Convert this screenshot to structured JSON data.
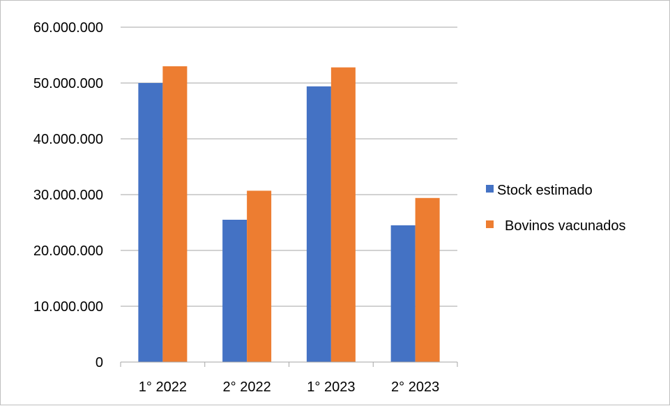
{
  "chart_data": {
    "type": "bar",
    "title": "",
    "xlabel": "",
    "ylabel": "",
    "categories": [
      "1° 2022",
      "2° 2022",
      "1° 2023",
      "2° 2023"
    ],
    "series": [
      {
        "name": "Stock estimado",
        "color": "#4472c4",
        "values": [
          50000000,
          25500000,
          49400000,
          24500000
        ]
      },
      {
        "name": "Bovinos vacunados",
        "color": "#ed7d31",
        "values": [
          53000000,
          30700000,
          52800000,
          29400000
        ]
      }
    ],
    "ylim": [
      0,
      60000000
    ],
    "yticks": [
      0,
      10000000,
      20000000,
      30000000,
      40000000,
      50000000,
      60000000
    ],
    "ytick_labels": [
      "0",
      "10.000.000",
      "20.000.000",
      "30.000.000",
      "40.000.000",
      "50.000.000",
      "60.000.000"
    ],
    "grid": true,
    "legend_position": "right"
  }
}
